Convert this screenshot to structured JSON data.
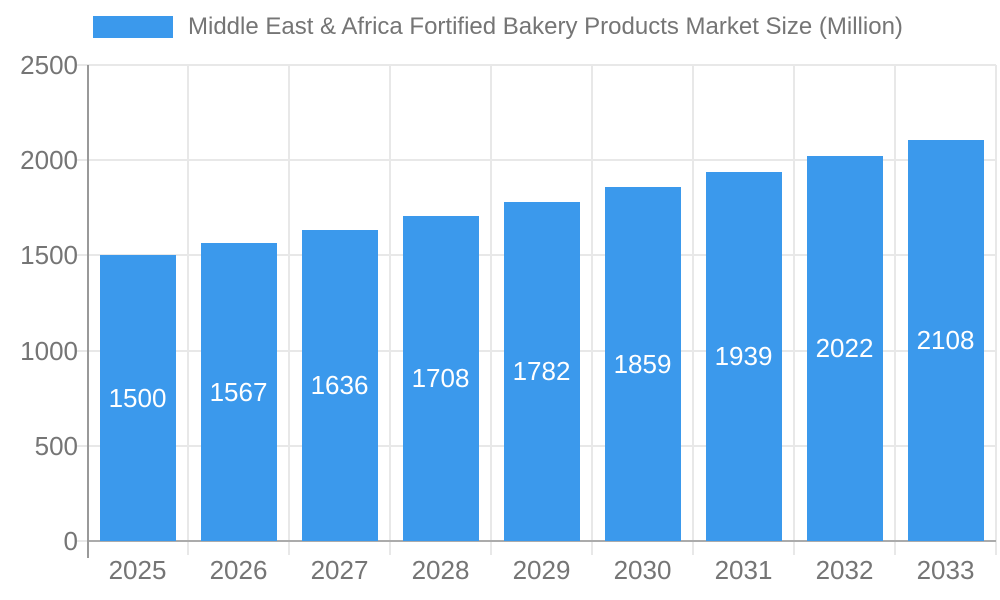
{
  "chart_data": {
    "type": "bar",
    "title": "Middle East & Africa Fortified Bakery Products Market Size (Million)",
    "categories": [
      "2025",
      "2026",
      "2027",
      "2028",
      "2029",
      "2030",
      "2031",
      "2032",
      "2033"
    ],
    "values": [
      1500,
      1567,
      1636,
      1708,
      1782,
      1859,
      1939,
      2022,
      2108
    ],
    "ylim": [
      0,
      2500
    ],
    "ytick_step": 500,
    "yticks": [
      0,
      500,
      1000,
      1500,
      2000,
      2500
    ],
    "grid": true,
    "legend_position": "top-left",
    "bar_labels_inside": true,
    "colors": {
      "bar": "#3B99EC",
      "bar_label_text": "#FFFFFF",
      "axis_text": "#757575",
      "title_text": "#757575",
      "gridline": "#E8E8E8",
      "y_axis_line": "#999999",
      "x_axis_line": "#ABABAB",
      "background": "#FFFFFF"
    }
  }
}
